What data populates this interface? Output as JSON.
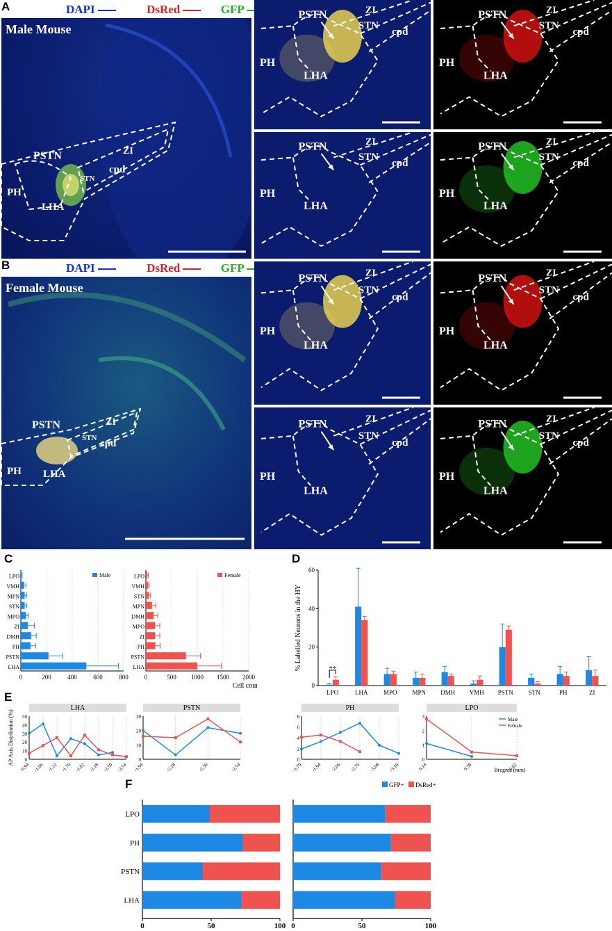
{
  "panel_letters": {
    "a": "A",
    "b": "B",
    "c": "C",
    "d": "D",
    "e": "E",
    "f": "F"
  },
  "legend_channels": {
    "dapi": "DAPI",
    "dsred": "DsRed",
    "gfp": "GFP"
  },
  "colors": {
    "dapi": "#1030e0",
    "dsred": "#e02020",
    "gfp": "#20b020",
    "male": "#1e88e5",
    "female": "#ef5350",
    "fluor_bg": "#0b1b6e"
  },
  "mouse_labels": {
    "male": "Male Mouse",
    "female": "Female Mouse"
  },
  "region_labels": {
    "pstn": "PSTN",
    "zi": "ZI",
    "stn": "STN",
    "cpd": "cpd",
    "ph": "PH",
    "lha": "LHA"
  },
  "chart_c_male": {
    "type": "bar",
    "orientation": "horizontal",
    "legend": "Male",
    "categories": [
      "LPO",
      "VMH",
      "MPN",
      "STN",
      "MPO",
      "ZI",
      "DMH",
      "PH",
      "PSTN",
      "LHA"
    ],
    "values": [
      5,
      25,
      30,
      30,
      40,
      55,
      80,
      75,
      215,
      510
    ],
    "errors": [
      5,
      15,
      15,
      15,
      20,
      50,
      40,
      40,
      110,
      250
    ],
    "xticks": [
      0,
      200,
      400,
      600,
      800
    ],
    "xlim": [
      0,
      800
    ]
  },
  "chart_c_female": {
    "type": "bar",
    "orientation": "horizontal",
    "legend": "Female",
    "categories": [
      "LPO",
      "VMH",
      "STN",
      "MPN",
      "DMH",
      "MPO",
      "ZI",
      "PH",
      "PSTN",
      "LHA"
    ],
    "values": [
      30,
      40,
      55,
      120,
      150,
      180,
      180,
      185,
      780,
      1000
    ],
    "errors": [
      20,
      20,
      30,
      70,
      80,
      90,
      90,
      90,
      280,
      470
    ],
    "xticks": [
      0,
      500,
      1000,
      1500,
      2000
    ],
    "xlim": [
      0,
      2000
    ],
    "xlabel": "Cell count"
  },
  "chart_d": {
    "type": "bar",
    "ylabel": "% Labelled Neurons in the HY",
    "categories": [
      "LPO",
      "LHA",
      "MPO",
      "MPN",
      "DMH",
      "VMH",
      "PSTN",
      "STN",
      "PH",
      "ZI"
    ],
    "series": [
      {
        "name": "Male",
        "values": [
          0.5,
          41,
          6,
          4,
          7,
          1,
          20,
          4,
          6,
          8
        ],
        "errors": [
          0.5,
          20,
          3,
          3,
          3,
          1.5,
          12,
          2,
          4,
          7
        ]
      },
      {
        "name": "Female",
        "values": [
          3,
          34,
          6,
          4,
          5,
          3,
          29,
          1,
          5,
          5
        ],
        "errors": [
          1.5,
          2,
          1.5,
          2,
          1,
          2,
          2,
          1,
          2,
          3
        ]
      }
    ],
    "significance": "**",
    "yticks": [
      0,
      20,
      40,
      60
    ],
    "ylim": [
      0,
      60
    ]
  },
  "chart_e": [
    {
      "title": "LHA",
      "ylabel": "AP Axis Distribution (%)",
      "x": [
        "-0.94",
        "-1.06",
        "-1.22",
        "-1.70",
        "-1.82",
        "-2.18",
        "-2.30",
        "-2.54"
      ],
      "series": [
        {
          "name": "Male",
          "values": [
            30,
            41,
            4,
            24,
            18,
            5,
            8,
            null
          ]
        },
        {
          "name": "Female",
          "values": [
            7,
            16,
            25,
            4,
            28,
            11,
            5,
            3
          ]
        }
      ],
      "yticks": [
        0,
        10,
        20,
        30,
        40,
        50
      ],
      "ylim": [
        0,
        50
      ]
    },
    {
      "title": "PSTN",
      "x": [
        "-1.94",
        "-2.18",
        "-2.30",
        "-2.54"
      ],
      "series": [
        {
          "name": "Male",
          "values": [
            20,
            3,
            22,
            18
          ]
        },
        {
          "name": "Female",
          "values": [
            16,
            15,
            28,
            12
          ]
        }
      ],
      "yticks": [
        0,
        10,
        20,
        30
      ],
      "ylim": [
        0,
        30
      ]
    },
    {
      "title": "PH",
      "x": [
        "-1.70",
        "-1.94",
        "-2.06",
        "-2.70",
        "-3.08",
        "-3.16"
      ],
      "series": [
        {
          "name": "Male",
          "values": [
            1.9,
            3.3,
            5.0,
            6.7,
            2.6,
            1.1
          ]
        },
        {
          "name": "Female",
          "values": [
            4.1,
            4.5,
            3.3,
            1.4,
            null,
            null
          ]
        }
      ],
      "yticks": [
        0,
        2,
        4,
        6,
        8
      ],
      "ylim": [
        0,
        8
      ]
    },
    {
      "title": "LPO",
      "x": [
        "0.14",
        "0.38",
        "0.62"
      ],
      "xlabel": "Bregma (mm)",
      "series": [
        {
          "name": "Male",
          "values": [
            1.1,
            0.2,
            null
          ]
        },
        {
          "name": "Female",
          "values": [
            2.8,
            0.5,
            0.25
          ]
        }
      ],
      "yticks": [
        0,
        1,
        2,
        3
      ],
      "ylim": [
        0,
        3
      ],
      "legend": [
        "Male",
        "Female"
      ]
    }
  ],
  "chart_f": {
    "type": "stacked-bar",
    "orientation": "horizontal",
    "categories": [
      "LPO",
      "PH",
      "PSTN",
      "LHA"
    ],
    "legend": [
      "GFP+",
      "DsRed+"
    ],
    "male_gfp": [
      49,
      73,
      44,
      72
    ],
    "female_gfp": [
      67,
      71,
      64,
      74
    ],
    "xticks": [
      0,
      50,
      100
    ],
    "xlim": [
      0,
      100
    ]
  }
}
